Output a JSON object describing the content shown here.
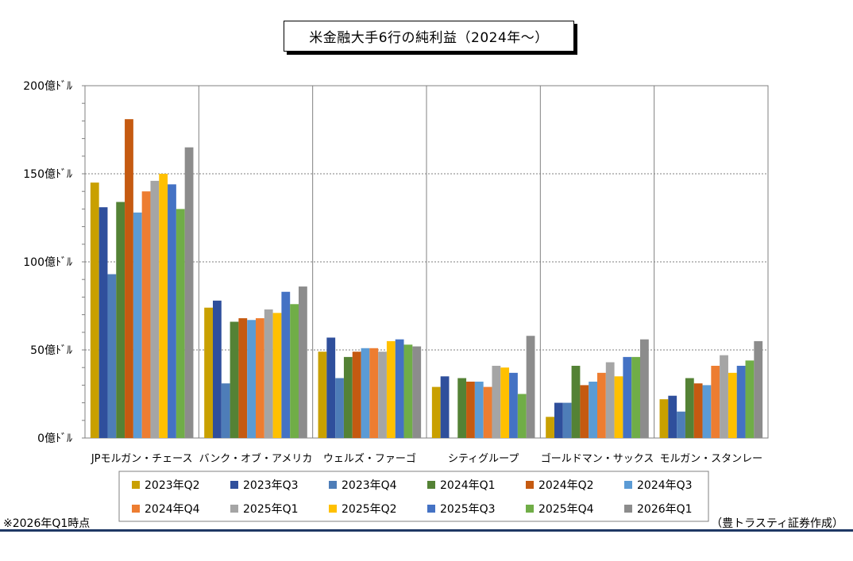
{
  "title": "米金融大手6行の純利益（2024年～）",
  "footnote": "※2026年Q1時点",
  "credit": "（豊トラスティ証券作成）",
  "chart_data": {
    "type": "bar",
    "title": "米金融大手6行の純利益（2024年～）",
    "ylim": [
      0,
      200
    ],
    "yticks": [
      "0億ﾄﾞﾙ",
      "50億ﾄﾞﾙ",
      "100億ﾄﾞﾙ",
      "150億ﾄﾞﾙ",
      "200億ﾄﾞﾙ"
    ],
    "ytick_values": [
      0,
      50,
      100,
      150,
      200
    ],
    "grid": "horizontal dashed + vertical group separators",
    "legend_position": "bottom",
    "categories": [
      "JPモルガン・チェース",
      "バンク・オブ・アメリカ",
      "ウェルズ・ファーゴ",
      "シティグループ",
      "ゴールドマン・サックス",
      "モルガン・スタンレー"
    ],
    "series": [
      {
        "name": "2023年Q2",
        "color": "#C9A000",
        "values": [
          145,
          74,
          49,
          29,
          12,
          22
        ]
      },
      {
        "name": "2023年Q3",
        "color": "#2F4F9C",
        "values": [
          131,
          78,
          57,
          35,
          20,
          24
        ]
      },
      {
        "name": "2023年Q4",
        "color": "#4E7DB8",
        "values": [
          93,
          31,
          34,
          0,
          20,
          15
        ]
      },
      {
        "name": "2024年Q1",
        "color": "#548235",
        "values": [
          134,
          66,
          46,
          34,
          41,
          34
        ]
      },
      {
        "name": "2024年Q2",
        "color": "#C55A11",
        "values": [
          181,
          68,
          49,
          32,
          30,
          31
        ]
      },
      {
        "name": "2024年Q3",
        "color": "#5B9BD5",
        "values": [
          128,
          67,
          51,
          32,
          32,
          30
        ]
      },
      {
        "name": "2024年Q4",
        "color": "#ED7D31",
        "values": [
          140,
          68,
          51,
          29,
          37,
          41
        ]
      },
      {
        "name": "2025年Q1",
        "color": "#A5A5A5",
        "values": [
          146,
          73,
          49,
          41,
          43,
          47
        ]
      },
      {
        "name": "2025年Q2",
        "color": "#FFC000",
        "values": [
          150,
          71,
          55,
          40,
          35,
          37
        ]
      },
      {
        "name": "2025年Q3",
        "color": "#4472C4",
        "values": [
          144,
          83,
          56,
          37,
          46,
          41
        ]
      },
      {
        "name": "2025年Q4",
        "color": "#70AD47",
        "values": [
          130,
          76,
          53,
          25,
          46,
          44
        ]
      },
      {
        "name": "2026年Q1",
        "color": "#8C8C8C",
        "values": [
          165,
          86,
          52,
          58,
          56,
          55
        ]
      }
    ]
  }
}
